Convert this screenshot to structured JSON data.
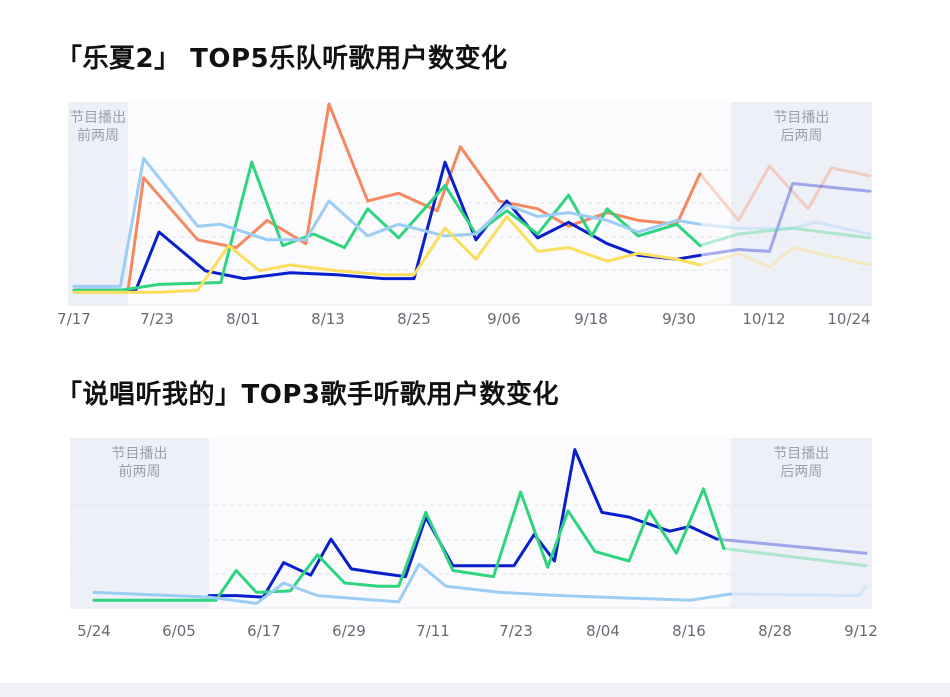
{
  "chart_data": [
    {
      "type": "line",
      "title": "「乐夏2」 TOP5乐队听歌用户数变化",
      "x_ticks": [
        "7/17",
        "7/23",
        "8/01",
        "8/13",
        "8/25",
        "9/06",
        "9/18",
        "9/30",
        "10/12",
        "10/24"
      ],
      "x_range": [
        "7/17",
        "10/28"
      ],
      "ylim": [
        0,
        100
      ],
      "grid": true,
      "shaded_regions": [
        {
          "label_line1": "节目播出",
          "label_line2": "前两周",
          "from": "7/17",
          "to": "7/24"
        },
        {
          "label_line1": "节目播出",
          "label_line2": "后两周",
          "from": "10/10",
          "to": "10/28"
        }
      ],
      "series": [
        {
          "color": "#f4895f",
          "points": [
            [
              "7/17",
              4
            ],
            [
              "7/24",
              4
            ],
            [
              "7/26",
              62
            ],
            [
              "8/02",
              30
            ],
            [
              "8/07",
              26
            ],
            [
              "8/11",
              40
            ],
            [
              "8/16",
              28
            ],
            [
              "8/19",
              100
            ],
            [
              "8/24",
              50
            ],
            [
              "8/28",
              54
            ],
            [
              "9/02",
              45
            ],
            [
              "9/05",
              78
            ],
            [
              "9/10",
              50
            ],
            [
              "9/15",
              46
            ],
            [
              "9/19",
              37
            ],
            [
              "9/24",
              44
            ],
            [
              "9/28",
              40
            ],
            [
              "10/03",
              38
            ],
            [
              "10/06",
              64
            ],
            [
              "10/11",
              40
            ],
            [
              "10/15",
              68
            ],
            [
              "10/20",
              46
            ],
            [
              "10/23",
              67
            ],
            [
              "10/28",
              63
            ]
          ]
        },
        {
          "color": "#0a1fcc",
          "points": [
            [
              "7/17",
              4
            ],
            [
              "7/23",
              4
            ],
            [
              "7/25",
              4
            ],
            [
              "7/28",
              34
            ],
            [
              "8/03",
              14
            ],
            [
              "8/08",
              10
            ],
            [
              "8/14",
              13
            ],
            [
              "8/20",
              12
            ],
            [
              "8/26",
              10
            ],
            [
              "8/30",
              10
            ],
            [
              "9/03",
              70
            ],
            [
              "9/07",
              30
            ],
            [
              "9/11",
              50
            ],
            [
              "9/15",
              31
            ],
            [
              "9/19",
              39
            ],
            [
              "9/24",
              28
            ],
            [
              "9/28",
              22
            ],
            [
              "10/03",
              20
            ],
            [
              "10/06",
              22
            ],
            [
              "10/11",
              25
            ],
            [
              "10/15",
              24
            ],
            [
              "10/18",
              59
            ],
            [
              "10/28",
              55
            ]
          ]
        },
        {
          "color": "#2ed47e",
          "points": [
            [
              "7/17",
              4
            ],
            [
              "7/23",
              4
            ],
            [
              "7/28",
              7
            ],
            [
              "8/05",
              8
            ],
            [
              "8/09",
              70
            ],
            [
              "8/13",
              27
            ],
            [
              "8/17",
              33
            ],
            [
              "8/21",
              26
            ],
            [
              "8/24",
              46
            ],
            [
              "8/28",
              31
            ],
            [
              "9/03",
              58
            ],
            [
              "9/07",
              33
            ],
            [
              "9/11",
              45
            ],
            [
              "9/15",
              33
            ],
            [
              "9/19",
              53
            ],
            [
              "9/22",
              32
            ],
            [
              "9/24",
              46
            ],
            [
              "9/28",
              32
            ],
            [
              "10/03",
              38
            ],
            [
              "10/06",
              27
            ],
            [
              "10/11",
              33
            ],
            [
              "10/18",
              36
            ],
            [
              "10/28",
              31
            ]
          ]
        },
        {
          "color": "#9ccdf5",
          "points": [
            [
              "7/17",
              6
            ],
            [
              "7/23",
              6
            ],
            [
              "7/26",
              72
            ],
            [
              "8/02",
              37
            ],
            [
              "8/05",
              38
            ],
            [
              "8/11",
              30
            ],
            [
              "8/16",
              30
            ],
            [
              "8/19",
              50
            ],
            [
              "8/24",
              32
            ],
            [
              "8/28",
              38
            ],
            [
              "9/03",
              32
            ],
            [
              "9/07",
              33
            ],
            [
              "9/11",
              48
            ],
            [
              "9/15",
              42
            ],
            [
              "9/19",
              44
            ],
            [
              "9/24",
              40
            ],
            [
              "9/28",
              34
            ],
            [
              "10/03",
              40
            ],
            [
              "10/06",
              38
            ],
            [
              "10/11",
              36
            ],
            [
              "10/18",
              36
            ],
            [
              "10/21",
              39
            ],
            [
              "10/28",
              33
            ]
          ]
        },
        {
          "color": "#fade5c",
          "points": [
            [
              "7/17",
              3
            ],
            [
              "7/23",
              3
            ],
            [
              "7/28",
              3
            ],
            [
              "8/02",
              4
            ],
            [
              "8/06",
              27
            ],
            [
              "8/10",
              14
            ],
            [
              "8/14",
              17
            ],
            [
              "8/20",
              14
            ],
            [
              "8/26",
              12
            ],
            [
              "8/30",
              12
            ],
            [
              "9/03",
              36
            ],
            [
              "9/07",
              20
            ],
            [
              "9/11",
              42
            ],
            [
              "9/15",
              24
            ],
            [
              "9/19",
              26
            ],
            [
              "9/24",
              19
            ],
            [
              "9/28",
              23
            ],
            [
              "10/03",
              20
            ],
            [
              "10/06",
              17
            ],
            [
              "10/11",
              23
            ],
            [
              "10/15",
              16
            ],
            [
              "10/18",
              26
            ],
            [
              "10/28",
              17
            ]
          ]
        }
      ]
    },
    {
      "type": "line",
      "title": "「说唱听我的」TOP3歌手听歌用户数变化",
      "x_ticks": [
        "5/24",
        "6/05",
        "6/17",
        "6/29",
        "7/11",
        "7/23",
        "8/04",
        "8/16",
        "8/28",
        "9/12"
      ],
      "x_range": [
        "5/24",
        "9/15"
      ],
      "ylim": [
        0,
        100
      ],
      "grid": true,
      "shaded_regions": [
        {
          "label_line1": "节目播出",
          "label_line2": "前两周",
          "from": "5/24",
          "to": "6/10"
        },
        {
          "label_line1": "节目播出",
          "label_line2": "后两周",
          "from": "8/26",
          "to": "9/15"
        }
      ],
      "series": [
        {
          "color": "#0a1fcc",
          "points": [
            [
              "6/10",
              6
            ],
            [
              "6/14",
              6
            ],
            [
              "6/18",
              5
            ],
            [
              "6/21",
              27
            ],
            [
              "6/25",
              19
            ],
            [
              "6/28",
              42
            ],
            [
              "7/01",
              23
            ],
            [
              "7/04",
              21
            ],
            [
              "7/09",
              18
            ],
            [
              "7/12",
              56
            ],
            [
              "7/16",
              25
            ],
            [
              "7/21",
              25
            ],
            [
              "7/25",
              25
            ],
            [
              "7/28",
              45
            ],
            [
              "7/31",
              28
            ],
            [
              "8/03",
              99
            ],
            [
              "8/07",
              59
            ],
            [
              "8/11",
              56
            ],
            [
              "8/17",
              47
            ],
            [
              "8/20",
              50
            ],
            [
              "8/24",
              42
            ],
            [
              "9/15",
              33
            ]
          ]
        },
        {
          "color": "#2ed47e",
          "points": [
            [
              "5/24",
              3
            ],
            [
              "6/08",
              3
            ],
            [
              "6/11",
              3
            ],
            [
              "6/14",
              22
            ],
            [
              "6/17",
              8
            ],
            [
              "6/22",
              9
            ],
            [
              "6/26",
              32
            ],
            [
              "6/30",
              14
            ],
            [
              "7/05",
              12
            ],
            [
              "7/08",
              12
            ],
            [
              "7/12",
              59
            ],
            [
              "7/16",
              22
            ],
            [
              "7/22",
              18
            ],
            [
              "7/26",
              72
            ],
            [
              "7/30",
              24
            ],
            [
              "8/02",
              60
            ],
            [
              "8/06",
              34
            ],
            [
              "8/11",
              28
            ],
            [
              "8/14",
              60
            ],
            [
              "8/18",
              33
            ],
            [
              "8/22",
              74
            ],
            [
              "8/25",
              36
            ],
            [
              "9/15",
              25
            ]
          ]
        },
        {
          "color": "#9ccdf5",
          "points": [
            [
              "5/24",
              8
            ],
            [
              "6/10",
              5
            ],
            [
              "6/17",
              1
            ],
            [
              "6/21",
              14
            ],
            [
              "6/26",
              6
            ],
            [
              "7/08",
              2
            ],
            [
              "7/11",
              26
            ],
            [
              "7/15",
              12
            ],
            [
              "7/23",
              8
            ],
            [
              "8/01",
              6
            ],
            [
              "8/20",
              3
            ],
            [
              "8/26",
              7
            ],
            [
              "9/14",
              6
            ],
            [
              "9/15",
              12
            ]
          ]
        }
      ]
    }
  ]
}
